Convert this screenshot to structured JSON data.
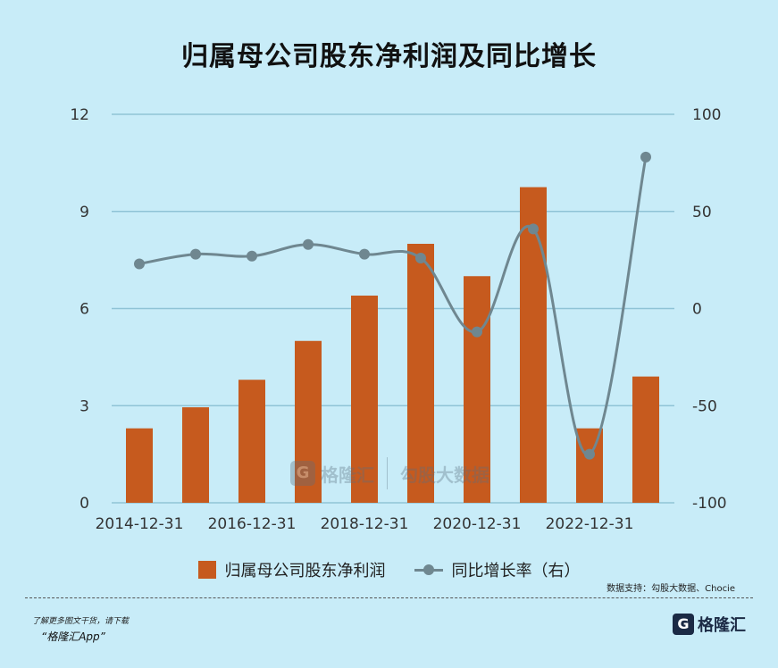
{
  "title": "归属母公司股东净利润及同比增长",
  "legend": {
    "bar_label": "归属母公司股东净利润",
    "line_label": "同比增长率（右）"
  },
  "source": "数据支持：勾股大数据、Chocie",
  "footer": {
    "note1": "了解更多图文干货，请下载",
    "note2": "“格隆汇App”",
    "logo_mark": "G",
    "logo_text": "格隆汇"
  },
  "watermark": {
    "mark": "G",
    "text1": "格隆汇",
    "text2": "勾股大数据"
  },
  "colors": {
    "bar": "#c65a1e",
    "line": "#6f8790",
    "grid": "#8fc3d6",
    "background": "#c8ecf8"
  },
  "chart_data": {
    "type": "bar",
    "categories": [
      "2014-12-31",
      "2015-12-31",
      "2016-12-31",
      "2017-12-31",
      "2018-12-31",
      "2019-12-31",
      "2020-12-31",
      "2021-12-31",
      "2022-12-31",
      "2023-12-31"
    ],
    "x_tick_labels": [
      "2014-12-31",
      "2016-12-31",
      "2018-12-31",
      "2020-12-31",
      "2022-12-31"
    ],
    "series": [
      {
        "name": "归属母公司股东净利润",
        "type": "bar",
        "axis": "left",
        "values": [
          2.3,
          2.95,
          3.8,
          5.0,
          6.4,
          8.0,
          7.0,
          9.75,
          2.3,
          3.9
        ]
      },
      {
        "name": "同比增长率（右）",
        "type": "line",
        "axis": "right",
        "values": [
          23,
          28,
          27,
          33,
          28,
          26,
          -12,
          41,
          -75,
          78
        ]
      }
    ],
    "ylim_left": [
      0,
      12
    ],
    "yticks_left": [
      0,
      3,
      6,
      9,
      12
    ],
    "ylim_right": [
      -100,
      100
    ],
    "yticks_right": [
      -100,
      -50,
      0,
      50,
      100
    ],
    "grid": true,
    "legend_position": "bottom"
  }
}
